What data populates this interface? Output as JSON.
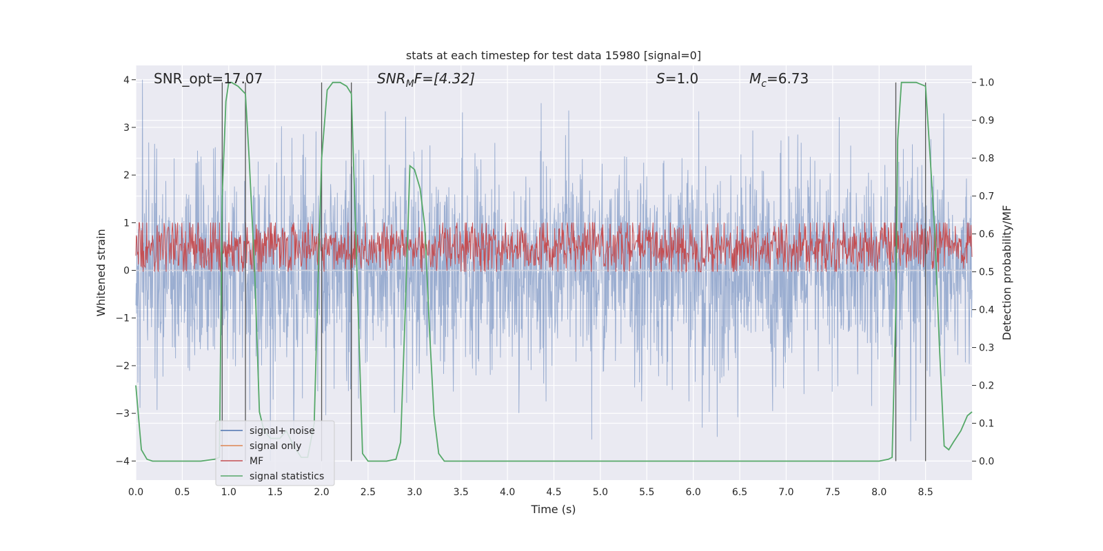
{
  "chart_data": {
    "type": "line",
    "title": "stats at each timestep for test data 15980 [signal=0]",
    "xlabel": "Time (s)",
    "ylabel": "Whitened strain",
    "y2label": "Detection probability/MF",
    "xlim": [
      0.0,
      9.0
    ],
    "ylim": [
      -4.4,
      4.3
    ],
    "y2lim": [
      -0.05,
      1.045
    ],
    "xticks": [
      "0.0",
      "0.5",
      "1.0",
      "1.5",
      "2.0",
      "2.5",
      "3.0",
      "3.5",
      "4.0",
      "4.5",
      "5.0",
      "5.5",
      "6.0",
      "6.5",
      "7.0",
      "7.5",
      "8.0",
      "8.5"
    ],
    "yticks": [
      "−4",
      "−3",
      "−2",
      "−1",
      "0",
      "1",
      "2",
      "3",
      "4"
    ],
    "y2ticks": [
      "0.0",
      "0.1",
      "0.2",
      "0.3",
      "0.4",
      "0.5",
      "0.6",
      "0.7",
      "0.8",
      "0.9",
      "1.0"
    ],
    "grid": true,
    "legend_position": "lower-left",
    "annotations": {
      "snr_opt": "SNR_opt=17.07",
      "snr_mf_main": "SNR",
      "snr_mf_sub": "M",
      "snr_mf_rest": "F=[4.32]",
      "s_main": "S",
      "s_rest": "=1.0",
      "mc_main": "M",
      "mc_sub": "c",
      "mc_rest": "=6.73"
    },
    "series": [
      {
        "name": "signal+ noise",
        "color": "#4c72b0",
        "axis": "left",
        "kind": "noise",
        "approx_range": [
          -4.0,
          4.0
        ]
      },
      {
        "name": "signal only",
        "color": "#dd8452",
        "axis": "left",
        "kind": "flat",
        "value": 0.0
      },
      {
        "name": "MF",
        "color": "#c44e52",
        "axis": "right",
        "kind": "noise",
        "approx_range": [
          0.5,
          0.63
        ]
      },
      {
        "name": "signal statistics",
        "color": "#55a868",
        "axis": "right",
        "kind": "line",
        "x": [
          0.0,
          0.06,
          0.12,
          0.18,
          0.3,
          0.5,
          0.7,
          0.85,
          0.9,
          0.93,
          0.97,
          1.0,
          1.03,
          1.1,
          1.18,
          1.22,
          1.28,
          1.33,
          1.38,
          1.45,
          1.55,
          1.62,
          1.7,
          1.78,
          1.85,
          1.92,
          1.97,
          2.0,
          2.06,
          2.12,
          2.2,
          2.27,
          2.32,
          2.38,
          2.44,
          2.5,
          2.6,
          2.7,
          2.8,
          2.85,
          2.9,
          2.95,
          3.0,
          3.06,
          3.11,
          3.16,
          3.21,
          3.26,
          3.32,
          3.4,
          3.5,
          4.0,
          5.0,
          6.0,
          7.0,
          8.0,
          8.1,
          8.14,
          8.18,
          8.2,
          8.24,
          8.3,
          8.4,
          8.5,
          8.55,
          8.6,
          8.65,
          8.7,
          8.75,
          8.8,
          8.88,
          8.95,
          9.0
        ],
        "values": [
          0.2,
          0.03,
          0.005,
          0.0,
          0.0,
          0.0,
          0.0,
          0.005,
          0.01,
          0.7,
          0.95,
          1.0,
          1.0,
          0.99,
          0.97,
          0.8,
          0.5,
          0.13,
          0.08,
          0.06,
          0.06,
          0.08,
          0.04,
          0.01,
          0.01,
          0.1,
          0.55,
          0.8,
          0.98,
          1.0,
          1.0,
          0.99,
          0.97,
          0.5,
          0.02,
          0.0,
          0.0,
          0.0,
          0.005,
          0.05,
          0.4,
          0.78,
          0.77,
          0.72,
          0.62,
          0.35,
          0.12,
          0.02,
          0.0,
          0.0,
          0.0,
          0.0,
          0.0,
          0.0,
          0.0,
          0.0,
          0.005,
          0.01,
          0.4,
          0.85,
          1.0,
          1.0,
          1.0,
          0.99,
          0.8,
          0.6,
          0.3,
          0.04,
          0.03,
          0.05,
          0.08,
          0.12,
          0.13
        ]
      }
    ],
    "vertical_lines_x": [
      0.93,
      1.18,
      2.0,
      2.32,
      8.18,
      8.5
    ]
  }
}
